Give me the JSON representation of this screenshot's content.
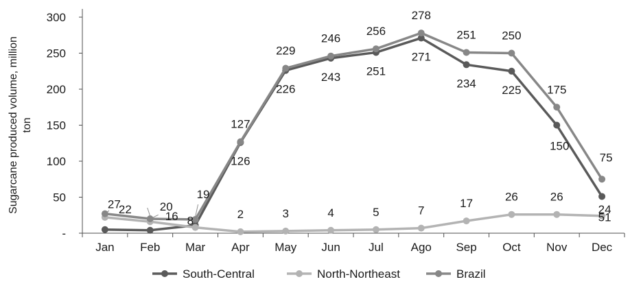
{
  "chart_data": {
    "type": "line",
    "title": "",
    "xlabel": "",
    "ylabel": "Sugarcane produced volume, million ton",
    "ylim": [
      0,
      300
    ],
    "y_ticks": [
      {
        "value": 0,
        "label": "-"
      },
      {
        "value": 50,
        "label": "50"
      },
      {
        "value": 100,
        "label": "100"
      },
      {
        "value": 150,
        "label": "150"
      },
      {
        "value": 200,
        "label": "200"
      },
      {
        "value": 250,
        "label": "250"
      },
      {
        "value": 300,
        "label": "300"
      }
    ],
    "categories": [
      "Jan",
      "Feb",
      "Mar",
      "Apr",
      "May",
      "Jun",
      "Jul",
      "Ago",
      "Sep",
      "Oct",
      "Nov",
      "Dec"
    ],
    "grid": false,
    "legend_position": "bottom",
    "series": [
      {
        "name": "South-Central",
        "color": "#5a5a5a",
        "values": [
          5,
          4,
          11,
          126,
          226,
          243,
          251,
          271,
          234,
          225,
          150,
          51
        ],
        "labels": [
          "",
          "",
          "",
          "126",
          "226",
          "243",
          "251",
          "271",
          "234",
          "225",
          "150",
          "51"
        ]
      },
      {
        "name": "North-Northeast",
        "color": "#b3b3b3",
        "values": [
          22,
          16,
          8,
          2,
          3,
          4,
          5,
          7,
          17,
          26,
          26,
          24
        ],
        "labels": [
          "22",
          "16",
          "8",
          "2",
          "3",
          "4",
          "5",
          "7",
          "17",
          "26",
          "26",
          "24"
        ]
      },
      {
        "name": "Brazil",
        "color": "#878787",
        "values": [
          27,
          20,
          19,
          127,
          229,
          246,
          256,
          278,
          251,
          250,
          175,
          75
        ],
        "labels": [
          "27",
          "20",
          "19",
          "127",
          "229",
          "246",
          "256",
          "278",
          "251",
          "250",
          "175",
          "75"
        ]
      }
    ]
  }
}
